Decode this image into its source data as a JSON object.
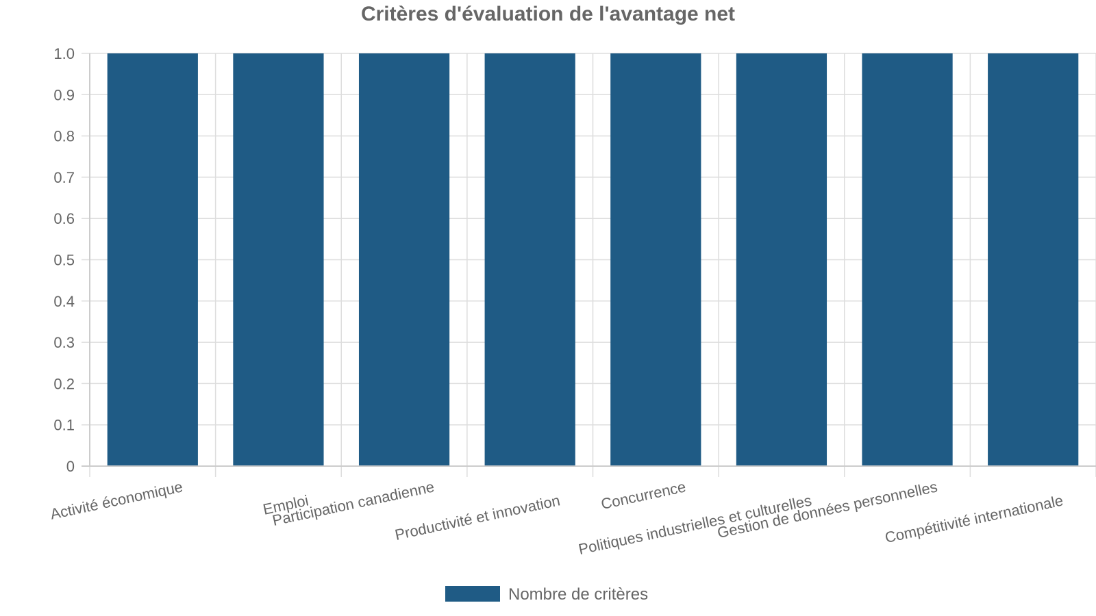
{
  "chart_data": {
    "type": "bar",
    "title": "Critères d'évaluation de l'avantage net",
    "categories": [
      "Activité économique",
      "Emploi",
      "Participation canadienne",
      "Productivité et innovation",
      "Concurrence",
      "Politiques industrielles et culturelles",
      "Gestion de données personnelles",
      "Compétitivité internationale"
    ],
    "series": [
      {
        "name": "Nombre de critères",
        "color": "#1f5b85",
        "values": [
          1,
          1,
          1,
          1,
          1,
          1,
          1,
          1
        ]
      }
    ],
    "ylim": [
      0,
      1
    ],
    "yticks": [
      "0",
      "0.1",
      "0.2",
      "0.3",
      "0.4",
      "0.5",
      "0.6",
      "0.7",
      "0.8",
      "0.9",
      "1.0"
    ],
    "grid": true,
    "legend_position": "bottom-center"
  }
}
